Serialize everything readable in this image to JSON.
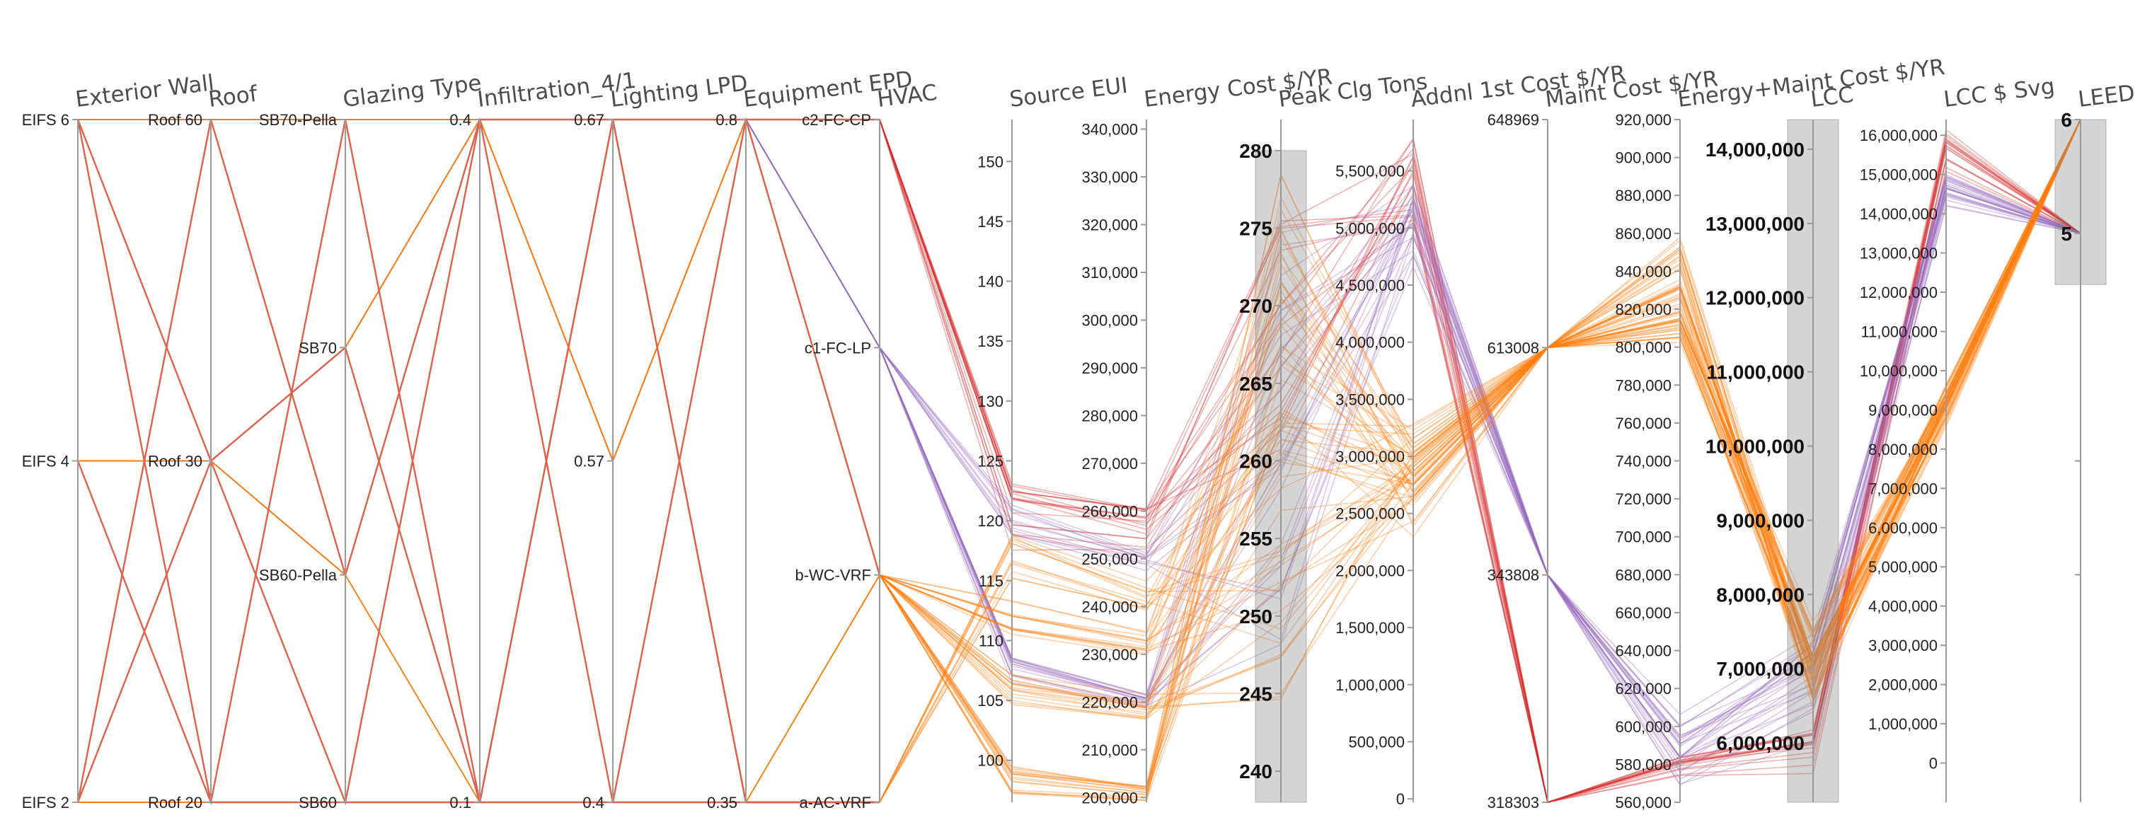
{
  "chart_data": {
    "type": "parallel-coordinates",
    "colors": {
      "red": "#d62728",
      "purple": "#9467bd",
      "orange": "#ff7f0e",
      "salmon": "#e0604a",
      "axis": "#9a9a9a",
      "brush": "#7f7f7f"
    },
    "axes": [
      {
        "key": "ew",
        "title": "Exterior Wall",
        "kind": "ordinal",
        "labels": [
          "EIFS 6",
          "EIFS 4",
          "EIFS 2"
        ]
      },
      {
        "key": "roof",
        "title": "Roof",
        "kind": "ordinal",
        "labels": [
          "Roof 60",
          "Roof 30",
          "Roof 20"
        ]
      },
      {
        "key": "glaz",
        "title": "Glazing Type",
        "kind": "ordinal",
        "labels": [
          "SB70-Pella",
          "SB70",
          "SB60-Pella",
          "SB60"
        ]
      },
      {
        "key": "inf",
        "title": "Infiltration_4/1",
        "kind": "ordinal",
        "labels": [
          "0.4",
          "0.1"
        ]
      },
      {
        "key": "lpd",
        "title": "Lighting LPD",
        "kind": "ordinal",
        "labels": [
          "0.67",
          "0.57",
          "0.4"
        ]
      },
      {
        "key": "epd",
        "title": "Equipment EPD",
        "kind": "ordinal",
        "labels": [
          "0.8",
          "0.35"
        ]
      },
      {
        "key": "hvac",
        "title": "HVAC",
        "kind": "ordinal",
        "labels": [
          "c2-FC-CP",
          "c1-FC-LP",
          "b-WC-VRF",
          "a-AC-VRF"
        ]
      },
      {
        "key": "eui",
        "title": "Source EUI",
        "kind": "linear",
        "domain": [
          96.5,
          153.5
        ],
        "ticks": [
          100,
          105,
          110,
          115,
          120,
          125,
          130,
          135,
          140,
          145,
          150
        ],
        "tickLabels": [
          "100",
          "105",
          "110",
          "115",
          "120",
          "125",
          "130",
          "135",
          "140",
          "145",
          "150"
        ]
      },
      {
        "key": "ecost",
        "title": "Energy Cost $/YR",
        "kind": "linear",
        "domain": [
          199000,
          342000
        ],
        "ticks": [
          200000,
          210000,
          220000,
          230000,
          240000,
          250000,
          260000,
          270000,
          280000,
          290000,
          300000,
          310000,
          320000,
          330000,
          340000
        ],
        "tickLabels": [
          "200,000",
          "210,000",
          "220,000",
          "230,000",
          "240,000",
          "250,000",
          "260,000",
          "270,000",
          "280,000",
          "290,000",
          "300,000",
          "310,000",
          "320,000",
          "330,000",
          "340,000"
        ]
      },
      {
        "key": "peak",
        "title": "Peak Clg Tons",
        "kind": "linear",
        "domain": [
          238,
          282
        ],
        "ticks": [
          240,
          245,
          250,
          255,
          260,
          265,
          270,
          275,
          280
        ],
        "tickLabels": [
          "240",
          "245",
          "250",
          "255",
          "260",
          "265",
          "270",
          "275",
          "280"
        ],
        "brush": [
          238,
          280
        ],
        "bigLabels": true
      },
      {
        "key": "addl",
        "title": "Addnl 1st Cost $/YR",
        "kind": "linear",
        "domain": [
          -30000,
          5950000
        ],
        "ticks": [
          0,
          500000,
          1000000,
          1500000,
          2000000,
          2500000,
          3000000,
          3500000,
          4000000,
          4500000,
          5000000,
          5500000
        ],
        "tickLabels": [
          "0",
          "500,000",
          "1,000,000",
          "1,500,000",
          "2,000,000",
          "2,500,000",
          "3,000,000",
          "3,500,000",
          "4,000,000",
          "4,500,000",
          "5,000,000",
          "5,500,000"
        ]
      },
      {
        "key": "maint",
        "title": "Maint Cost $/YR",
        "kind": "ordinal",
        "labels": [
          "648969",
          "613008",
          "343808",
          "318303"
        ]
      },
      {
        "key": "emc",
        "title": "Energy+Maint Cost $/YR",
        "kind": "linear",
        "domain": [
          560000,
          920000
        ],
        "ticks": [
          560000,
          580000,
          600000,
          620000,
          640000,
          660000,
          680000,
          700000,
          720000,
          740000,
          760000,
          780000,
          800000,
          820000,
          840000,
          860000,
          880000,
          900000,
          920000
        ],
        "tickLabels": [
          "560,000",
          "580,000",
          "600,000",
          "620,000",
          "640,000",
          "660,000",
          "680,000",
          "700,000",
          "720,000",
          "740,000",
          "760,000",
          "780,000",
          "800,000",
          "820,000",
          "840,000",
          "860,000",
          "880,000",
          "900,000",
          "920,000"
        ]
      },
      {
        "key": "lcc",
        "title": "LCC",
        "kind": "linear",
        "domain": [
          5200000,
          14400000
        ],
        "ticks": [
          6000000,
          7000000,
          8000000,
          9000000,
          10000000,
          11000000,
          12000000,
          13000000,
          14000000
        ],
        "tickLabels": [
          "6,000,000",
          "7,000,000",
          "8,000,000",
          "9,000,000",
          "10,000,000",
          "11,000,000",
          "12,000,000",
          "13,000,000",
          "14,000,000"
        ],
        "brush": [
          5200000,
          14400000
        ],
        "bigLabels": true
      },
      {
        "key": "svg",
        "title": "LCC $ Svg",
        "kind": "linear",
        "domain": [
          -1000000,
          16400000
        ],
        "ticks": [
          0,
          1000000,
          2000000,
          3000000,
          4000000,
          5000000,
          6000000,
          7000000,
          8000000,
          9000000,
          10000000,
          11000000,
          12000000,
          13000000,
          14000000,
          15000000,
          16000000
        ],
        "tickLabels": [
          "0",
          "1,000,000",
          "2,000,000",
          "3,000,000",
          "4,000,000",
          "5,000,000",
          "6,000,000",
          "7,000,000",
          "8,000,000",
          "9,000,000",
          "10,000,000",
          "11,000,000",
          "12,000,000",
          "13,000,000",
          "14,000,000",
          "15,000,000",
          "16,000,000"
        ]
      },
      {
        "key": "leed",
        "title": "LEED",
        "kind": "linear",
        "domain": [
          0,
          6
        ],
        "noLine": false,
        "ticks": [
          6,
          5
        ],
        "tickLabels": [
          "6",
          "5"
        ],
        "brush": [
          4.55,
          6
        ],
        "bigLabels": true,
        "extraTicks": [
          3,
          2
        ]
      }
    ],
    "series": [
      {
        "color": "red",
        "ew": 0,
        "roof": 0,
        "glaz": 0,
        "inf": 0,
        "lpd": 0,
        "epd": 0,
        "hvac": 0,
        "eui": [
          117,
          124
        ],
        "ecost": [
          249000,
          262000
        ],
        "peak": [
          258,
          277
        ],
        "addl": [
          5000000,
          5850000
        ],
        "maint": 3,
        "emc": [
          572000,
          585000
        ],
        "lcc": [
          5500000,
          6300000
        ],
        "svg": [
          14900000,
          16200000
        ],
        "leed": 5,
        "n": 18
      },
      {
        "color": "purple",
        "ew": 1,
        "roof": 1,
        "glaz": 1,
        "inf": 0,
        "lpd": 1,
        "epd": 0,
        "hvac": 1,
        "eui": [
          106,
          109
        ],
        "ecost": [
          218000,
          222000
        ],
        "peak": [
          248,
          276
        ],
        "addl": [
          4600000,
          5400000
        ],
        "maint": 2,
        "emc": [
          558000,
          600000
        ],
        "lcc": [
          5600000,
          7800000
        ],
        "svg": [
          14000000,
          15200000
        ],
        "leed": 5,
        "n": 16
      },
      {
        "color": "purple",
        "ew": 1,
        "roof": 1,
        "glaz": 2,
        "inf": 0,
        "lpd": 1,
        "epd": 0,
        "hvac": 1,
        "eui": [
          118,
          122
        ],
        "ecost": [
          247000,
          252000
        ],
        "peak": [
          246,
          270
        ],
        "addl": [
          4800000,
          5300000
        ],
        "maint": 2,
        "emc": [
          580000,
          610000
        ],
        "lcc": [
          6200000,
          7700000
        ],
        "svg": [
          14000000,
          15000000
        ],
        "leed": 5,
        "n": 10
      },
      {
        "color": "orange",
        "ew": 1,
        "roof": 1,
        "glaz": 1,
        "inf": 0,
        "lpd": 1,
        "epd": 0,
        "hvac": 2,
        "eui": [
          97,
          100
        ],
        "ecost": [
          199000,
          203000
        ],
        "peak": [
          262,
          279
        ],
        "addl": [
          2500000,
          3200000
        ],
        "maint": 1,
        "emc": [
          800000,
          820000
        ],
        "lcc": [
          6700000,
          7700000
        ],
        "svg": [
          8600000,
          9600000
        ],
        "leed": 6,
        "n": 18
      },
      {
        "color": "orange",
        "ew": 2,
        "roof": 2,
        "glaz": 3,
        "inf": 1,
        "lpd": 2,
        "epd": 1,
        "hvac": 2,
        "eui": [
          104,
          108
        ],
        "ecost": [
          215000,
          222000
        ],
        "peak": [
          244,
          272
        ],
        "addl": [
          2600000,
          3100000
        ],
        "maint": 1,
        "emc": [
          820000,
          840000
        ],
        "lcc": [
          6500000,
          7400000
        ],
        "svg": [
          8800000,
          9600000
        ],
        "leed": 6,
        "n": 16
      },
      {
        "color": "orange",
        "ew": 0,
        "roof": 0,
        "glaz": 0,
        "inf": 0,
        "lpd": 1,
        "epd": 0,
        "hvac": 2,
        "eui": [
          110,
          114
        ],
        "ecost": [
          229000,
          236000
        ],
        "peak": [
          250,
          275
        ],
        "addl": [
          2200000,
          3000000
        ],
        "maint": 1,
        "emc": [
          840000,
          860000
        ],
        "lcc": [
          6400000,
          7200000
        ],
        "svg": [
          9000000,
          9900000
        ],
        "leed": 6,
        "n": 14
      },
      {
        "color": "orange",
        "ew": 1,
        "roof": 1,
        "glaz": 2,
        "inf": 1,
        "lpd": 2,
        "epd": 1,
        "hvac": 3,
        "eui": [
          114,
          121
        ],
        "ecost": [
          238000,
          246000
        ],
        "peak": [
          248,
          268
        ],
        "addl": [
          2700000,
          3300000
        ],
        "maint": 1,
        "emc": [
          805000,
          830000
        ],
        "lcc": [
          6600000,
          7500000
        ],
        "svg": [
          8500000,
          9500000
        ],
        "leed": 6,
        "n": 12
      },
      {
        "color": "salmon",
        "ew": 0,
        "roof": 2,
        "glaz": 3,
        "inf": 1,
        "lpd": 2,
        "epd": 1,
        "hvac": 3,
        "only": 7,
        "n": 3
      },
      {
        "color": "salmon",
        "ew": 2,
        "roof": 0,
        "glaz": 2,
        "inf": 0,
        "lpd": 0,
        "epd": 1,
        "hvac": 3,
        "only": 7,
        "n": 3
      },
      {
        "color": "salmon",
        "ew": 1,
        "roof": 2,
        "glaz": 0,
        "inf": 1,
        "lpd": 0,
        "epd": 1,
        "hvac": 3,
        "only": 7,
        "n": 3
      },
      {
        "color": "salmon",
        "ew": 2,
        "roof": 1,
        "glaz": 3,
        "inf": 0,
        "lpd": 2,
        "epd": 0,
        "hvac": 2,
        "only": 7,
        "n": 3
      },
      {
        "color": "salmon",
        "ew": 0,
        "roof": 1,
        "glaz": 1,
        "inf": 1,
        "lpd": 0,
        "epd": 0,
        "hvac": 0,
        "only": 7,
        "n": 3
      }
    ]
  }
}
